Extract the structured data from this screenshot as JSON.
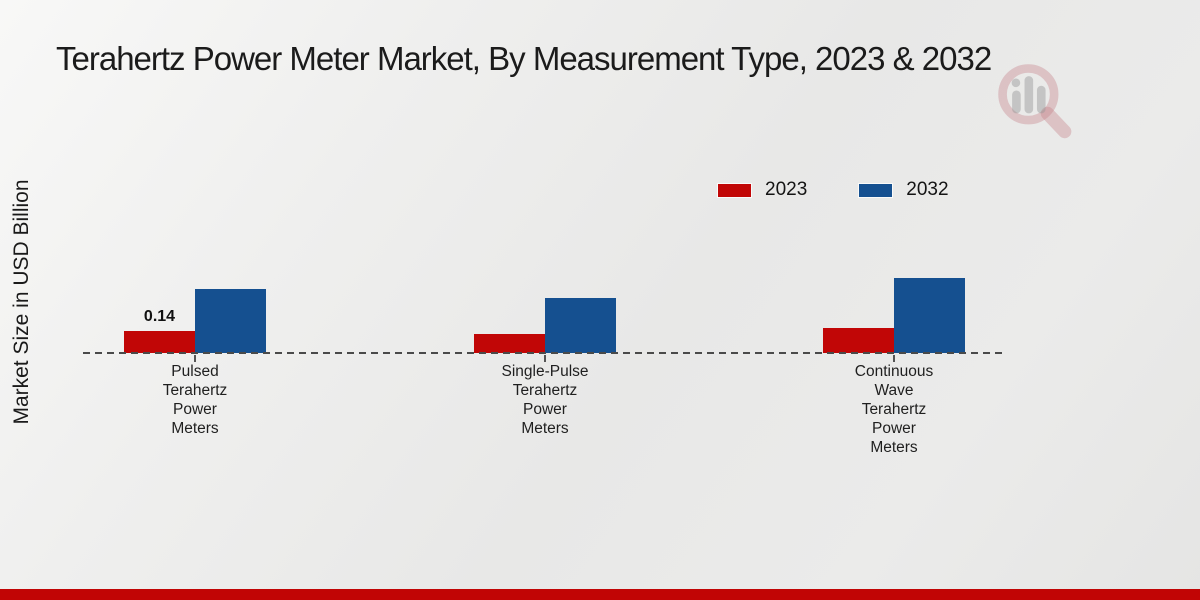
{
  "title": "Terahertz Power Meter Market, By Measurement Type, 2023 & 2032",
  "y_axis_label": "Market Size in USD Billion",
  "accent": {
    "footer_bar_color": "#c10505"
  },
  "watermark_icon": "magnifier-bar-chart-logo",
  "chart_data": {
    "type": "bar",
    "title": "Terahertz Power Meter Market, By Measurement Type, 2023 & 2032",
    "xlabel": "",
    "ylabel": "Market Size in USD Billion",
    "grid": false,
    "baseline_style": "dashed",
    "legend_position": "top-right",
    "categories": [
      "Pulsed Terahertz Power Meters",
      "Single-Pulse Terahertz Power Meters",
      "Continuous Wave Terahertz Power Meters"
    ],
    "category_label_lines": [
      [
        "Pulsed",
        "Terahertz",
        "Power",
        "Meters"
      ],
      [
        "Single-Pulse",
        "Terahertz",
        "Power",
        "Meters"
      ],
      [
        "Continuous",
        "Wave",
        "Terahertz",
        "Power",
        "Meters"
      ]
    ],
    "series": [
      {
        "name": "2023",
        "color": "#c10606",
        "values": [
          0.14,
          0.12,
          0.16
        ]
      },
      {
        "name": "2032",
        "color": "#155090",
        "values": [
          0.41,
          0.35,
          0.48
        ]
      }
    ],
    "data_labels": [
      {
        "series": "2023",
        "category": "Pulsed Terahertz Power Meters",
        "value_text": "0.14"
      }
    ]
  }
}
